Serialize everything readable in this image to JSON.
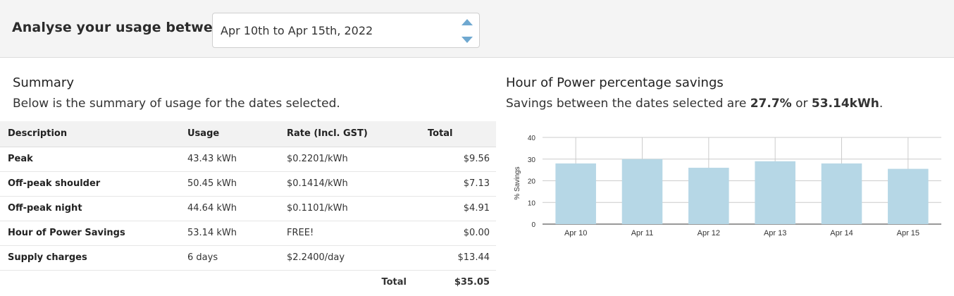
{
  "header": {
    "label": "Analyse your usage between",
    "date_range": "Apr 10th to Apr 15th, 2022"
  },
  "summary": {
    "title": "Summary",
    "subtitle": "Below is the summary of usage for the dates selected.",
    "columns": [
      "Description",
      "Usage",
      "Rate (Incl. GST)",
      "Total"
    ],
    "rows": [
      {
        "description": "Peak",
        "usage": "43.43 kWh",
        "rate": "$0.2201/kWh",
        "total": "$9.56"
      },
      {
        "description": "Off-peak shoulder",
        "usage": "50.45 kWh",
        "rate": "$0.1414/kWh",
        "total": "$7.13"
      },
      {
        "description": "Off-peak night",
        "usage": "44.64 kWh",
        "rate": "$0.1101/kWh",
        "total": "$4.91"
      },
      {
        "description": "Hour of Power Savings",
        "usage": "53.14 kWh",
        "rate": "FREE!",
        "total": "$0.00"
      },
      {
        "description": "Supply charges",
        "usage": "6 days",
        "rate": "$2.2400/day",
        "total": "$13.44"
      }
    ],
    "total_label": "Total",
    "total_value": "$35.05"
  },
  "hop": {
    "title": "Hour of Power percentage savings",
    "subtitle_prefix": "Savings between the dates selected are ",
    "pct": "27.7%",
    "mid": " or ",
    "kwh": "53.14kWh",
    "end": "."
  },
  "chart_data": {
    "type": "bar",
    "categories": [
      "Apr 10",
      "Apr 11",
      "Apr 12",
      "Apr 13",
      "Apr 14",
      "Apr 15"
    ],
    "values": [
      28,
      30,
      26,
      29,
      28,
      25.5
    ],
    "ylabel": "% Savings",
    "ylim": [
      0,
      40
    ],
    "yticks": [
      "0",
      "10",
      "20",
      "30",
      "40"
    ],
    "bar_color": "#b6d7e6",
    "grid": true
  }
}
